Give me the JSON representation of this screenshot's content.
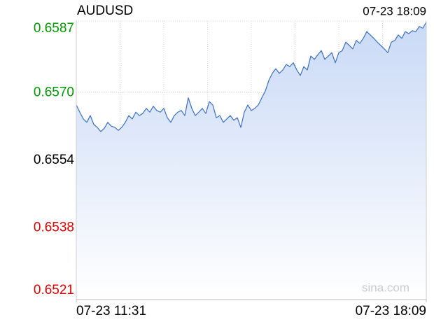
{
  "chart_data": {
    "type": "line",
    "title": "AUDUSD",
    "timestamp": "07-23 18:09",
    "watermark": "sina.com",
    "color": "#3a6fc4",
    "fill_color": "#c9d9f6",
    "values": [
      0.65671,
      0.65654,
      0.65638,
      0.6563,
      0.65646,
      0.65625,
      0.65618,
      0.65608,
      0.65616,
      0.6563,
      0.65621,
      0.65618,
      0.65611,
      0.65618,
      0.6563,
      0.65646,
      0.65638,
      0.65654,
      0.65646,
      0.65651,
      0.65663,
      0.65654,
      0.65668,
      0.65658,
      0.65654,
      0.65663,
      0.65641,
      0.6563,
      0.65646,
      0.65654,
      0.65658,
      0.65646,
      0.65688,
      0.65663,
      0.65646,
      0.65654,
      0.65663,
      0.65651,
      0.65679,
      0.65671,
      0.65641,
      0.65646,
      0.6563,
      0.65638,
      0.65646,
      0.65635,
      0.65641,
      0.65618,
      0.65654,
      0.65671,
      0.65658,
      0.65663,
      0.65671,
      0.65688,
      0.65704,
      0.65729,
      0.65746,
      0.65757,
      0.65746,
      0.65754,
      0.65767,
      0.65762,
      0.65771,
      0.65754,
      0.65741,
      0.65762,
      0.65754,
      0.65787,
      0.65779,
      0.6579,
      0.658,
      0.65779,
      0.65787,
      0.65795,
      0.65771,
      0.65795,
      0.658,
      0.6582,
      0.65812,
      0.65804,
      0.65824,
      0.65817,
      0.65829,
      0.65845,
      0.65837,
      0.65829,
      0.6582,
      0.65812,
      0.65804,
      0.65795,
      0.6582,
      0.65824,
      0.65837,
      0.65829,
      0.65845,
      0.6584,
      0.65847,
      0.65845,
      0.65857,
      0.65853,
      0.65867
    ],
    "xlim": [
      0,
      100
    ],
    "xticks": [
      {
        "value": 0,
        "label": "07-23 11:31"
      },
      {
        "value": 100,
        "label": "07-23 18:09"
      }
    ],
    "ylim": [
      0.6521,
      0.6587
    ],
    "yticks": [
      0.6521,
      0.6538,
      0.6554,
      {
        "value": 0.657,
        "label": "0.6570"
      },
      0.6587
    ],
    "ytick_colors": [
      "#dd0000",
      "#dd0000",
      "#000000",
      "#009900",
      "#009900"
    ],
    "reference_tick": 2,
    "grid": true
  }
}
